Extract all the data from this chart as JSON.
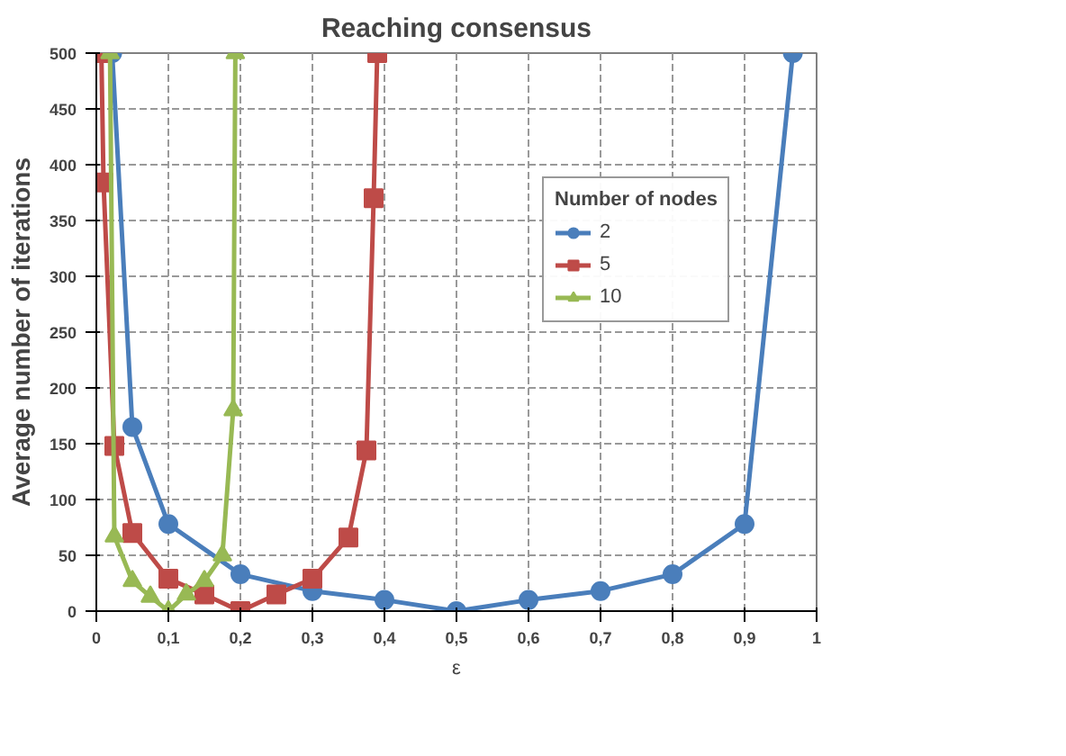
{
  "chart_data": {
    "type": "line",
    "title": "Reaching consensus",
    "xlabel": "ε",
    "ylabel": "Average number of iterations",
    "legend_title": "Number of nodes",
    "legend": "right",
    "grid": true,
    "line_style": "solid",
    "xlim": [
      0,
      1
    ],
    "ylim": [
      0,
      500
    ],
    "xticks": [
      0,
      {
        "value": 0.1,
        "label": "0,1"
      },
      {
        "value": 0.2,
        "label": "0,2"
      },
      {
        "value": 0.3,
        "label": "0,3"
      },
      {
        "value": 0.4,
        "label": "0,4"
      },
      {
        "value": 0.5,
        "label": "0,5"
      },
      {
        "value": 0.6,
        "label": "0,6"
      },
      {
        "value": 0.7,
        "label": "0,7"
      },
      {
        "value": 0.8,
        "label": "0,8"
      },
      {
        "value": 0.9,
        "label": "0,9"
      },
      1
    ],
    "yticks": [
      0,
      50,
      100,
      150,
      200,
      250,
      300,
      350,
      400,
      450,
      500
    ],
    "series": [
      {
        "name": "2",
        "color": "#4a7ebb",
        "marker": "circle",
        "x": [
          0.022,
          0.05,
          0.1,
          0.2,
          0.3,
          0.4,
          0.5,
          0.6,
          0.7,
          0.8,
          0.9,
          0.967
        ],
        "values": [
          500,
          165,
          78,
          33,
          18,
          10,
          0,
          10,
          18,
          33,
          78,
          500
        ]
      },
      {
        "name": "5",
        "color": "#be4b48",
        "marker": "square",
        "x": [
          0.007,
          0.01,
          0.025,
          0.05,
          0.1,
          0.15,
          0.2,
          0.25,
          0.3,
          0.35,
          0.375,
          0.385,
          0.39
        ],
        "values": [
          500,
          384,
          148,
          70,
          29,
          15,
          0,
          15,
          29,
          66,
          144,
          370,
          500
        ]
      },
      {
        "name": "10",
        "color": "#98b954",
        "marker": "triangle",
        "x": [
          0.019,
          0.025,
          0.05,
          0.075,
          0.1,
          0.125,
          0.15,
          0.175,
          0.19,
          0.193
        ],
        "values": [
          500,
          67,
          27,
          13,
          0,
          15,
          27,
          50,
          180,
          500
        ]
      }
    ]
  }
}
